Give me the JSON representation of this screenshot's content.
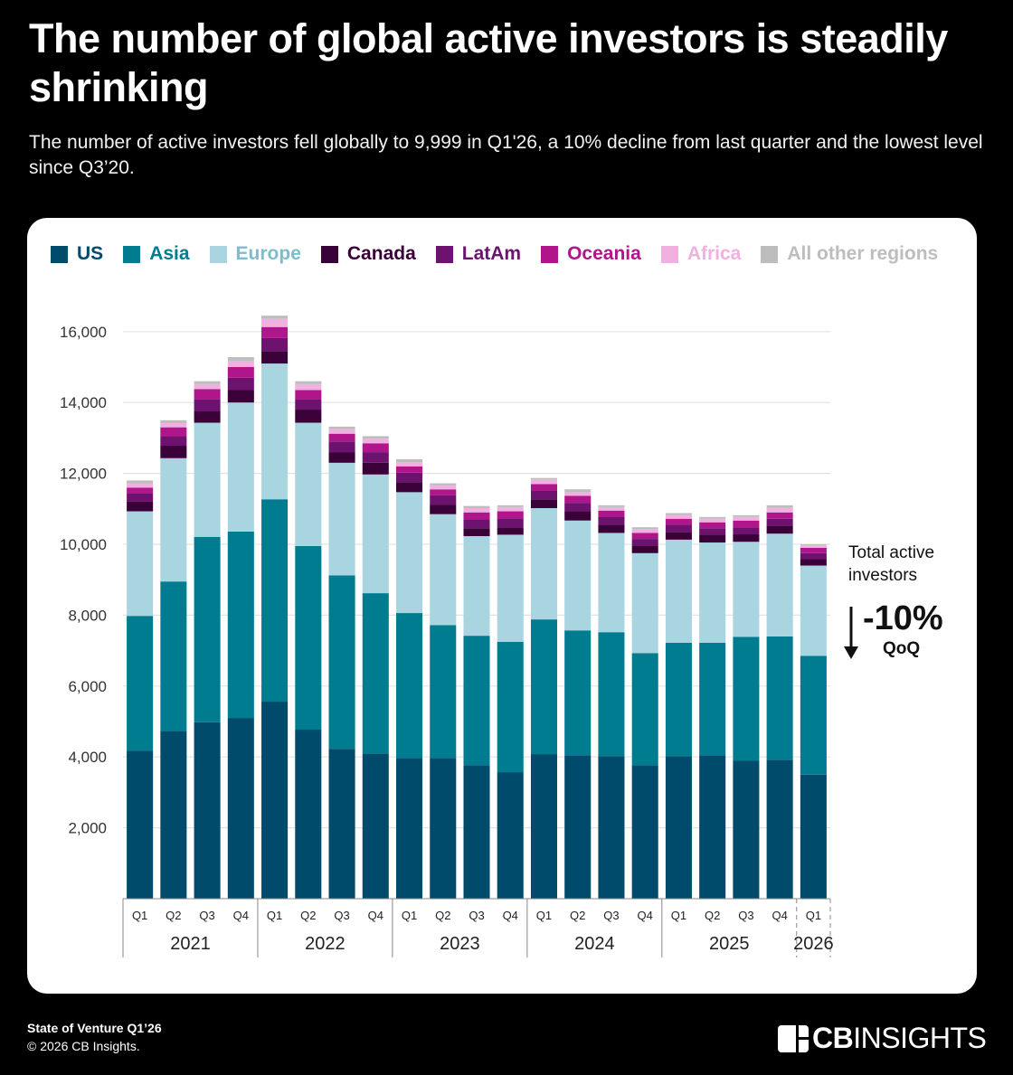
{
  "header": {
    "title": "The number of global active investors is steadily shrinking",
    "subtitle": "The number of active investors fell globally to 9,999 in Q1'26, a 10% decline from last quarter and the lowest level since Q3’20."
  },
  "annotation": {
    "label": "Total active investors",
    "change": "-10%",
    "period": "QoQ",
    "icon": "down-arrow-icon"
  },
  "footer": {
    "source": "State of Venture Q1’26",
    "copyright": "© 2026 CB Insights.",
    "brand_bold": "CB",
    "brand_light": "INSIGHTS"
  },
  "chart_data": {
    "type": "bar",
    "stacked": true,
    "title": "The number of global active investors is steadily shrinking",
    "xlabel": "",
    "ylabel": "",
    "ylim": [
      0,
      16500
    ],
    "yticks": [
      2000,
      4000,
      6000,
      8000,
      10000,
      12000,
      14000,
      16000
    ],
    "ytick_labels": [
      "2,000",
      "4,000",
      "6,000",
      "8,000",
      "10,000",
      "12,000",
      "14,000",
      "16,000"
    ],
    "grid": true,
    "legend_position": "top",
    "categories": [
      "Q1'21",
      "Q2'21",
      "Q3'21",
      "Q4'21",
      "Q1'22",
      "Q2'22",
      "Q3'22",
      "Q4'22",
      "Q1'23",
      "Q2'23",
      "Q3'23",
      "Q4'23",
      "Q1'24",
      "Q2'24",
      "Q3'24",
      "Q4'24",
      "Q1'25",
      "Q2'25",
      "Q3'25",
      "Q4'25",
      "Q1'26"
    ],
    "quarter_labels": [
      "Q1",
      "Q2",
      "Q3",
      "Q4",
      "Q1",
      "Q2",
      "Q3",
      "Q4",
      "Q1",
      "Q2",
      "Q3",
      "Q4",
      "Q1",
      "Q2",
      "Q3",
      "Q4",
      "Q1",
      "Q2",
      "Q3",
      "Q4",
      "Q1"
    ],
    "year_groups": [
      {
        "label": "2021",
        "count": 4
      },
      {
        "label": "2022",
        "count": 4
      },
      {
        "label": "2023",
        "count": 4
      },
      {
        "label": "2024",
        "count": 4
      },
      {
        "label": "2025",
        "count": 4
      },
      {
        "label": "2026",
        "count": 1
      }
    ],
    "series": [
      {
        "name": "US",
        "color": "#004a6b",
        "values": [
          4180,
          4730,
          4980,
          5100,
          5560,
          4770,
          4230,
          4100,
          3970,
          3970,
          3770,
          3570,
          4080,
          4050,
          4020,
          3770,
          4020,
          4050,
          3900,
          3920,
          3500
        ]
      },
      {
        "name": "Asia",
        "color": "#007c91",
        "values": [
          3800,
          4220,
          5230,
          5260,
          5710,
          5180,
          4890,
          4520,
          4090,
          3750,
          3650,
          3680,
          3800,
          3520,
          3500,
          3160,
          3200,
          3170,
          3490,
          3480,
          3350
        ]
      },
      {
        "name": "Europe",
        "color": "#a8d5e0",
        "values": [
          2950,
          3480,
          3220,
          3640,
          3830,
          3480,
          3180,
          3350,
          3410,
          3130,
          2810,
          3020,
          3140,
          3100,
          2800,
          2820,
          2910,
          2830,
          2680,
          2900,
          2550
        ]
      },
      {
        "name": "Canada",
        "color": "#3a0038",
        "values": [
          270,
          350,
          320,
          350,
          350,
          370,
          300,
          330,
          280,
          270,
          220,
          210,
          250,
          260,
          230,
          210,
          220,
          220,
          210,
          230,
          180
        ]
      },
      {
        "name": "LatAm",
        "color": "#6e1270",
        "values": [
          250,
          270,
          350,
          350,
          370,
          300,
          300,
          300,
          270,
          260,
          250,
          250,
          250,
          240,
          230,
          190,
          200,
          180,
          200,
          190,
          170
        ]
      },
      {
        "name": "Oceania",
        "color": "#b0158c",
        "values": [
          150,
          250,
          280,
          300,
          310,
          250,
          220,
          250,
          180,
          170,
          200,
          200,
          180,
          200,
          170,
          170,
          170,
          170,
          190,
          180,
          150
        ]
      },
      {
        "name": "Africa",
        "color": "#f0b1e0",
        "values": [
          120,
          120,
          140,
          180,
          230,
          170,
          130,
          130,
          120,
          120,
          120,
          120,
          120,
          100,
          100,
          110,
          110,
          100,
          100,
          130,
          70
        ]
      },
      {
        "name": "All other regions",
        "color": "#bdbdbd",
        "values": [
          80,
          80,
          80,
          100,
          90,
          80,
          70,
          70,
          80,
          50,
          60,
          50,
          50,
          80,
          50,
          50,
          50,
          50,
          50,
          70,
          29
        ]
      }
    ]
  }
}
